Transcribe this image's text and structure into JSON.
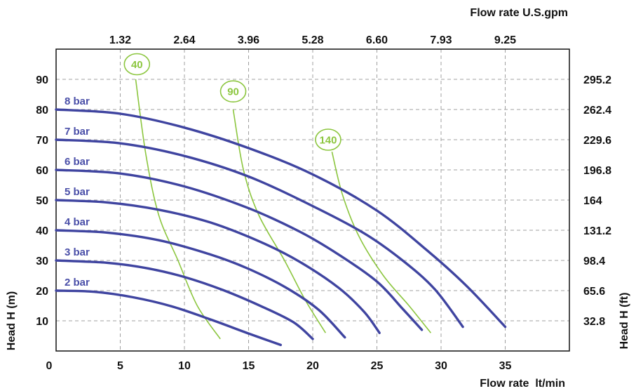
{
  "chart_data": {
    "type": "line",
    "top_axis_title": "Flow rate U.S.gpm",
    "bottom_axis_title": "Flow rate  lt/min",
    "left_axis_title": "Head H (m)",
    "right_axis_title": "Head H (ft)",
    "x_ticks": [
      "0",
      "5",
      "10",
      "15",
      "20",
      "25",
      "30",
      "35"
    ],
    "x_tick_values": [
      0,
      5,
      10,
      15,
      20,
      25,
      30,
      35
    ],
    "top_ticks": [
      "1.32",
      "2.64",
      "3.96",
      "5.28",
      "6.60",
      "7.93",
      "9.25"
    ],
    "top_tick_values": [
      5,
      10,
      15,
      20,
      25,
      30,
      35
    ],
    "y_ticks": [
      "10",
      "20",
      "30",
      "40",
      "50",
      "60",
      "70",
      "80",
      "90"
    ],
    "y_tick_values": [
      10,
      20,
      30,
      40,
      50,
      60,
      70,
      80,
      90
    ],
    "right_ticks": [
      "32.8",
      "65.6",
      "98.4",
      "131.2",
      "164",
      "196.8",
      "229.6",
      "262.4",
      "295.2"
    ],
    "xlim": [
      0,
      40
    ],
    "ylim": [
      0,
      100
    ],
    "grid": true,
    "colors": {
      "pressure": "#3f44a0",
      "consumption": "#8cc63f",
      "grid": "#a0a0a0",
      "text": "#111111"
    },
    "pressure_series": [
      {
        "name": "2 bar",
        "points": [
          [
            0,
            20
          ],
          [
            3,
            19.6
          ],
          [
            6,
            17.8
          ],
          [
            9,
            14.8
          ],
          [
            12,
            10.5
          ],
          [
            15,
            5.8
          ],
          [
            17.5,
            2
          ]
        ]
      },
      {
        "name": "3 bar",
        "points": [
          [
            0,
            30
          ],
          [
            4,
            29.2
          ],
          [
            7,
            27.5
          ],
          [
            10,
            24.5
          ],
          [
            13,
            20.2
          ],
          [
            16,
            14.8
          ],
          [
            18.5,
            9.5
          ],
          [
            20,
            4
          ]
        ]
      },
      {
        "name": "4 bar",
        "points": [
          [
            0,
            40
          ],
          [
            4,
            39.2
          ],
          [
            8,
            36.7
          ],
          [
            12,
            32
          ],
          [
            15,
            27.2
          ],
          [
            18,
            20.8
          ],
          [
            20.5,
            13.5
          ],
          [
            22.5,
            4.5
          ]
        ]
      },
      {
        "name": "5 bar",
        "points": [
          [
            0,
            50
          ],
          [
            4,
            49.2
          ],
          [
            8,
            46.8
          ],
          [
            12,
            42.6
          ],
          [
            16,
            36
          ],
          [
            19,
            29.5
          ],
          [
            22,
            21
          ],
          [
            24,
            13
          ],
          [
            25.2,
            6
          ]
        ]
      },
      {
        "name": "6 bar",
        "points": [
          [
            0,
            60
          ],
          [
            5,
            58.8
          ],
          [
            10,
            54.5
          ],
          [
            15,
            47.3
          ],
          [
            19,
            39.5
          ],
          [
            22,
            32
          ],
          [
            25,
            23
          ],
          [
            27,
            14
          ],
          [
            28.5,
            7
          ]
        ]
      },
      {
        "name": "7 bar",
        "points": [
          [
            0,
            70
          ],
          [
            5,
            68.8
          ],
          [
            10,
            64.6
          ],
          [
            15,
            57.8
          ],
          [
            20,
            48
          ],
          [
            24,
            39
          ],
          [
            27,
            30
          ],
          [
            29.5,
            20.5
          ],
          [
            31.7,
            8
          ]
        ]
      },
      {
        "name": "8 bar",
        "points": [
          [
            0,
            80
          ],
          [
            5,
            78.6
          ],
          [
            10,
            74
          ],
          [
            15,
            67.2
          ],
          [
            20,
            58.5
          ],
          [
            25,
            46.5
          ],
          [
            29,
            33
          ],
          [
            32,
            21.5
          ],
          [
            35,
            8
          ]
        ]
      }
    ],
    "consumption_series": [
      {
        "name": "40",
        "points": [
          [
            6.2,
            90
          ],
          [
            7,
            65
          ],
          [
            8,
            45
          ],
          [
            9.5,
            30
          ],
          [
            11,
            15
          ],
          [
            12.8,
            4
          ]
        ],
        "bubble": [
          6.3,
          95
        ]
      },
      {
        "name": "90",
        "points": [
          [
            13.8,
            80
          ],
          [
            14.6,
            60
          ],
          [
            15.8,
            45
          ],
          [
            17.8,
            30
          ],
          [
            19.4,
            17
          ],
          [
            21,
            6
          ]
        ],
        "bubble": [
          13.8,
          86
        ]
      },
      {
        "name": "140",
        "points": [
          [
            21.5,
            66
          ],
          [
            22.3,
            52
          ],
          [
            23.6,
            38
          ],
          [
            25.5,
            25
          ],
          [
            27.5,
            15
          ],
          [
            29.2,
            6
          ]
        ],
        "bubble": [
          21.2,
          70
        ]
      }
    ]
  }
}
